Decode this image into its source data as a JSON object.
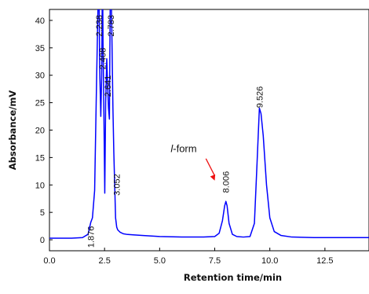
{
  "chart_data": {
    "type": "line",
    "xlabel": "Retention time/min",
    "ylabel": "Absorbance/mV",
    "xlim": [
      0,
      14.5
    ],
    "ylim": [
      -2,
      42
    ],
    "xticks": [
      0.0,
      2.5,
      5.0,
      7.5,
      10.0,
      12.5
    ],
    "xtick_labels": [
      "0.0",
      "2.5",
      "5.0",
      "7.5",
      "10.0",
      "12.5"
    ],
    "yticks": [
      0,
      5,
      10,
      15,
      20,
      25,
      30,
      35,
      40
    ],
    "ytick_labels": [
      "0",
      "5",
      "10",
      "15",
      "20",
      "25",
      "30",
      "35",
      "40"
    ],
    "grid": false,
    "line_color": "#0000ff",
    "series": [
      {
        "x": [
          0.0,
          1.0,
          1.5,
          1.75,
          1.876,
          1.95,
          2.05,
          2.12,
          2.18,
          2.238,
          2.28,
          2.33,
          2.37,
          2.408,
          2.43,
          2.47,
          2.51,
          2.55,
          2.6,
          2.641,
          2.68,
          2.72,
          2.76,
          2.783,
          2.83,
          2.88,
          2.92,
          2.96,
          3.0,
          3.052,
          3.1,
          3.2,
          3.35,
          3.5,
          3.8,
          4.2,
          5.0,
          6.0,
          7.0,
          7.5,
          7.7,
          7.85,
          7.95,
          8.006,
          8.06,
          8.15,
          8.3,
          8.5,
          8.8,
          9.1,
          9.3,
          9.42,
          9.526,
          9.6,
          9.7,
          9.85,
          10.0,
          10.2,
          10.5,
          11.0,
          12.0,
          13.0,
          14.5
        ],
        "y": [
          0.3,
          0.3,
          0.4,
          1.0,
          3.2,
          4.0,
          9.0,
          25.0,
          38.0,
          50.0,
          31.0,
          22.5,
          30.0,
          50.0,
          36.0,
          23.0,
          8.5,
          25.0,
          33.0,
          28.0,
          24.0,
          22.0,
          45.0,
          50.0,
          38.0,
          24.0,
          16.0,
          10.0,
          4.0,
          2.3,
          1.8,
          1.4,
          1.1,
          1.0,
          0.9,
          0.8,
          0.6,
          0.5,
          0.5,
          0.6,
          1.2,
          3.5,
          6.2,
          7.0,
          6.2,
          3.0,
          1.0,
          0.6,
          0.5,
          0.6,
          3.0,
          14.0,
          24.0,
          23.0,
          19.0,
          10.0,
          4.0,
          1.5,
          0.8,
          0.5,
          0.4,
          0.4,
          0.4
        ]
      }
    ],
    "peak_labels": [
      {
        "text": "1.876",
        "x": 1.876,
        "y_top": 2.5
      },
      {
        "text": "2.238",
        "x": 2.238,
        "y_top": 41.0
      },
      {
        "text": "2.408",
        "x": 2.408,
        "y_top": 35.0
      },
      {
        "text": "2.641",
        "x": 2.641,
        "y_top": 30.0
      },
      {
        "text": "2.783",
        "x": 2.783,
        "y_top": 41.0
      },
      {
        "text": "3.052",
        "x": 3.052,
        "y_top": 12.0
      },
      {
        "text": "8.006",
        "x": 8.006,
        "y_top": 12.5
      },
      {
        "text": "9.526",
        "x": 9.526,
        "y_top": 28.0
      }
    ],
    "annotation": {
      "text": "l-form",
      "text_x": 5.5,
      "text_y": 16.0,
      "arrow_from": [
        7.1,
        14.8
      ],
      "arrow_to": [
        7.5,
        10.8
      ],
      "arrow_color": "#ee1111"
    }
  }
}
